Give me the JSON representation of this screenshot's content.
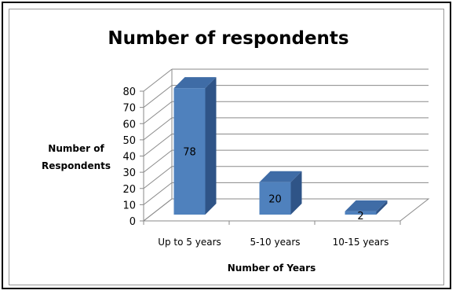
{
  "chart_data": {
    "type": "bar",
    "title": "Number of respondents",
    "xlabel": "Number of Years",
    "ylabel_line1": "Number of",
    "ylabel_line2": "Respondents",
    "categories": [
      "Up to 5 years",
      "5-10 years",
      "10-15 years"
    ],
    "values": [
      78,
      20,
      2
    ],
    "data_labels": [
      "78",
      "20",
      "2"
    ],
    "ylim": [
      0,
      80
    ],
    "yticks": [
      "0",
      "10",
      "20",
      "30",
      "40",
      "50",
      "60",
      "70",
      "80"
    ],
    "grid": true,
    "legend": "none",
    "colors": {
      "bar_front": "#4f81bd",
      "bar_side": "#2f5487",
      "bar_top": "#3f6ca6",
      "grid": "#8a8a8a"
    }
  }
}
